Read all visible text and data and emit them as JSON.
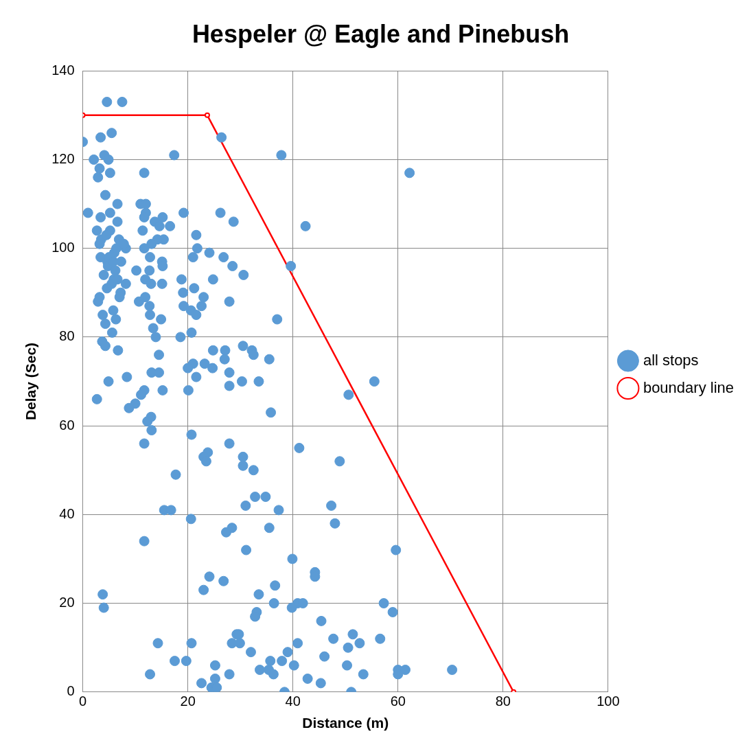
{
  "chart_data": {
    "type": "scatter",
    "title": "Hespeler @ Eagle and Pinebush",
    "xlabel": "Distance (m)",
    "ylabel": "Delay (Sec)",
    "xlim": [
      0,
      100
    ],
    "xticks": [
      0,
      20,
      40,
      60,
      80,
      100
    ],
    "ylim": [
      0,
      140
    ],
    "yticks": [
      0,
      20,
      40,
      60,
      80,
      100,
      120,
      140
    ],
    "grid": true,
    "legend": "right",
    "marker": "circle",
    "series": [
      {
        "name": "all stops",
        "type": "scatter",
        "color": "#5b9bd5",
        "x": [
          4.6,
          7.5,
          0,
          5.5,
          3.4,
          2.1,
          4.1,
          4.9,
          3.2,
          2.9,
          5.2,
          11.7,
          4.3,
          6.6,
          11,
          12,
          1,
          5.2,
          12,
          19.2,
          26.2,
          3.4,
          11.7,
          15.2,
          6.6,
          13.7,
          28.7,
          42.4,
          16.6,
          14.6,
          2.7,
          11.4,
          21.6,
          3.5,
          15.4,
          14.2,
          6.9,
          3.2,
          13.1,
          21.8,
          11.7,
          8.2,
          24.1,
          3.4,
          21,
          26.8,
          12.8,
          7.3,
          15.1,
          4.7,
          28.5,
          39.6,
          15.2,
          10.2,
          12.7,
          4,
          30.6,
          24.8,
          11.9,
          18.8,
          5.9,
          15.1,
          8.2,
          13,
          21.2,
          4.6,
          19.1,
          7.2,
          11.9,
          23,
          3.2,
          2.9,
          10.7,
          27.9,
          19.2,
          12.7,
          22.6,
          20.6,
          5.8,
          21.6,
          3.8,
          12.8,
          14.9,
          37,
          6.3,
          4.3,
          13.4,
          5.6,
          20.7,
          13.9,
          18.6,
          3.7,
          4.3,
          30.5,
          6.7,
          27.1,
          32.2,
          24.8,
          32.5,
          14.5,
          27,
          35.5,
          21,
          23.2,
          20,
          24.7,
          27.9,
          13.1,
          14.5,
          8.4,
          21.6,
          4.9,
          30.3,
          33.5,
          55.5,
          27.9,
          15.2,
          20.1,
          11.7,
          11.1,
          50.6,
          2.7,
          10,
          8.8,
          35.8,
          13,
          12.3,
          13.1,
          20.7,
          11.7,
          27.9,
          41.2,
          23.8,
          23,
          30.5,
          23.5,
          48.9,
          30.5,
          32.5,
          17.7,
          32.8,
          34.8,
          31,
          47.3,
          15.5,
          16.8,
          37.3,
          20.6,
          48,
          28.4,
          35.5,
          27.3,
          11.7,
          31.1,
          59.6,
          39.9,
          44.2,
          44.2,
          24.1,
          26.8,
          36.6,
          23,
          3.8,
          33.5,
          4,
          36.4,
          40.9,
          41.9,
          39.8,
          57.3,
          59,
          33.1,
          32.8,
          45.4,
          29.3,
          29.7,
          51.4,
          28.4,
          29.9,
          14.3,
          20.7,
          40.9,
          52.7,
          47.7,
          56.6,
          50.5,
          39,
          32,
          17.5,
          19.7,
          35.7,
          37.9,
          46,
          25.2,
          40.2,
          50.3,
          33.7,
          35.4,
          60,
          61.4,
          70.3,
          12.8,
          27.9,
          36.3,
          53.4,
          60,
          25.2,
          42.8,
          22.6,
          45.3,
          24.5,
          25.5,
          38.4,
          51.1,
          37.8,
          17.4,
          26.4,
          62.2,
          5.2,
          6,
          4.8,
          5.5,
          6.4,
          7,
          5,
          6.2,
          4.5,
          5.8,
          7.8,
          6.6
        ],
        "values": [
          133,
          133,
          124,
          126,
          125,
          120,
          121,
          120,
          118,
          116,
          117,
          117,
          112,
          110,
          110,
          110,
          108,
          108,
          108,
          108,
          108,
          107,
          107,
          107,
          106,
          106,
          106,
          105,
          105,
          105,
          104,
          104,
          103,
          102,
          102,
          102,
          102,
          101,
          101,
          100,
          100,
          100,
          99,
          98,
          98,
          98,
          98,
          97,
          97,
          97,
          96,
          96,
          96,
          95,
          95,
          94,
          94,
          93,
          93,
          93,
          93,
          92,
          92,
          92,
          91,
          91,
          90,
          90,
          89,
          89,
          89,
          88,
          88,
          88,
          87,
          87,
          87,
          86,
          86,
          85,
          85,
          85,
          84,
          84,
          84,
          83,
          82,
          81,
          81,
          80,
          80,
          79,
          78,
          78,
          77,
          77,
          77,
          77,
          76,
          76,
          75,
          75,
          74,
          74,
          73,
          73,
          72,
          72,
          72,
          71,
          71,
          70,
          70,
          70,
          70,
          69,
          68,
          68,
          68,
          67,
          67,
          66,
          65,
          64,
          63,
          62,
          61,
          59,
          58,
          56,
          56,
          55,
          54,
          53,
          53,
          52,
          52,
          51,
          50,
          49,
          44,
          44,
          42,
          42,
          41,
          41,
          41,
          39,
          38,
          37,
          37,
          36,
          34,
          32,
          32,
          30,
          27,
          26,
          26,
          25,
          24,
          23,
          22,
          22,
          19,
          20,
          20,
          20,
          19,
          20,
          18,
          18,
          17,
          16,
          13,
          13,
          13,
          11,
          11,
          11,
          11,
          11,
          11,
          12,
          12,
          10,
          9,
          9,
          7,
          7,
          7,
          7,
          8,
          6,
          6,
          6,
          5,
          5,
          5,
          5,
          5,
          4,
          4,
          4,
          4,
          4,
          3,
          3,
          2,
          2,
          1,
          1,
          0,
          0,
          121,
          121,
          125,
          117,
          104,
          99,
          96,
          92,
          100,
          89,
          98,
          95,
          103,
          97,
          101,
          93
        ]
      },
      {
        "name": "boundary line",
        "type": "line",
        "color": "#ff0000",
        "line_style": "solid",
        "x": [
          0,
          23.7,
          82
        ],
        "values": [
          130,
          130,
          0
        ]
      }
    ]
  }
}
